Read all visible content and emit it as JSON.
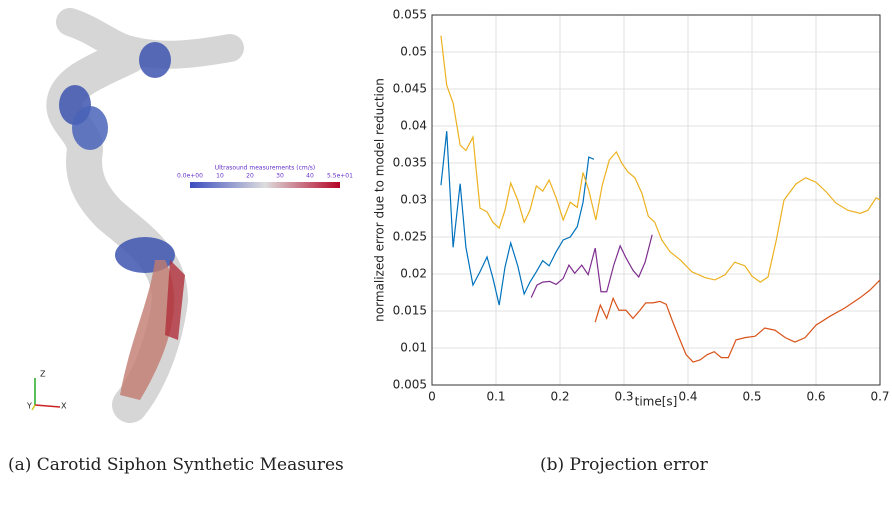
{
  "left_figure": {
    "colorbar_title": "Ultrasound measurements (cm/s)",
    "colorbar_ticks": [
      "0.0e+00",
      "10",
      "20",
      "30",
      "40",
      "5.5e+01"
    ],
    "axis_letters": [
      "Z",
      "Y",
      "X"
    ],
    "caption": "(a) Carotid Siphon Synthetic Measures"
  },
  "chart_data": {
    "type": "line",
    "caption": "(b) Projection error",
    "x_label": "time[s]",
    "y_label": "normalized error due to model reduction",
    "xlim": [
      0,
      0.7
    ],
    "ylim": [
      0.005,
      0.055
    ],
    "xticks": [
      0,
      0.1,
      0.2,
      0.3,
      0.4,
      0.5,
      0.6,
      0.7
    ],
    "yticks": [
      0.005,
      0.01,
      0.015,
      0.02,
      0.025,
      0.03,
      0.035,
      0.04,
      0.045,
      0.05,
      0.055
    ],
    "grid": true,
    "series": [
      {
        "color": "#0072bd",
        "x": [
          0.014,
          0.023,
          0.033,
          0.044,
          0.053,
          0.064,
          0.075,
          0.086,
          0.095,
          0.105,
          0.114,
          0.123,
          0.134,
          0.144,
          0.153,
          0.163,
          0.173,
          0.183,
          0.194,
          0.205,
          0.216,
          0.227,
          0.236,
          0.245,
          0.253
        ],
        "values": [
          0.032,
          0.0393,
          0.0236,
          0.0322,
          0.0236,
          0.0185,
          0.0203,
          0.0223,
          0.0195,
          0.0158,
          0.0209,
          0.0242,
          0.0211,
          0.0173,
          0.0189,
          0.0203,
          0.0218,
          0.0211,
          0.023,
          0.0246,
          0.025,
          0.0264,
          0.0297,
          0.0358,
          0.0355
        ]
      },
      {
        "color": "#edb120",
        "x": [
          0.014,
          0.023,
          0.033,
          0.044,
          0.053,
          0.064,
          0.075,
          0.086,
          0.095,
          0.105,
          0.114,
          0.123,
          0.134,
          0.144,
          0.153,
          0.163,
          0.173,
          0.183,
          0.194,
          0.205,
          0.216,
          0.227,
          0.236,
          0.245,
          0.256,
          0.266,
          0.277,
          0.288,
          0.297,
          0.306,
          0.317,
          0.328,
          0.338,
          0.348,
          0.359,
          0.372,
          0.388,
          0.406,
          0.427,
          0.442,
          0.458,
          0.473,
          0.489,
          0.5,
          0.513,
          0.525,
          0.538,
          0.55,
          0.569,
          0.584,
          0.6,
          0.616,
          0.631,
          0.65,
          0.669,
          0.681,
          0.694,
          0.7
        ],
        "values": [
          0.0522,
          0.0455,
          0.0431,
          0.0374,
          0.0367,
          0.0385,
          0.0289,
          0.0284,
          0.027,
          0.0262,
          0.0286,
          0.0323,
          0.03,
          0.027,
          0.0286,
          0.0319,
          0.0312,
          0.0327,
          0.0303,
          0.0273,
          0.0297,
          0.029,
          0.0337,
          0.0313,
          0.0273,
          0.032,
          0.0354,
          0.0365,
          0.0349,
          0.0338,
          0.033,
          0.0309,
          0.0278,
          0.027,
          0.0246,
          0.023,
          0.0219,
          0.0203,
          0.0195,
          0.0192,
          0.0199,
          0.0216,
          0.0211,
          0.0197,
          0.0189,
          0.0196,
          0.0246,
          0.03,
          0.0322,
          0.033,
          0.0324,
          0.0311,
          0.0296,
          0.0286,
          0.0282,
          0.0286,
          0.0303,
          0.03
        ]
      },
      {
        "color": "#7e2f8e",
        "x": [
          0.155,
          0.164,
          0.173,
          0.184,
          0.194,
          0.205,
          0.214,
          0.223,
          0.234,
          0.244,
          0.255,
          0.264,
          0.273,
          0.284,
          0.294,
          0.303,
          0.314,
          0.323,
          0.333,
          0.344
        ],
        "values": [
          0.0168,
          0.0185,
          0.0189,
          0.019,
          0.0186,
          0.0194,
          0.0212,
          0.0201,
          0.0212,
          0.0199,
          0.0235,
          0.0176,
          0.0176,
          0.0212,
          0.0238,
          0.0222,
          0.0205,
          0.0196,
          0.0216,
          0.0253
        ]
      },
      {
        "color": "#d95319",
        "x": [
          0.255,
          0.263,
          0.273,
          0.283,
          0.292,
          0.303,
          0.314,
          0.325,
          0.334,
          0.345,
          0.356,
          0.366,
          0.375,
          0.386,
          0.397,
          0.408,
          0.419,
          0.43,
          0.441,
          0.452,
          0.463,
          0.475,
          0.489,
          0.505,
          0.52,
          0.536,
          0.552,
          0.567,
          0.583,
          0.6,
          0.622,
          0.645,
          0.669,
          0.684,
          0.7
        ],
        "values": [
          0.0135,
          0.0158,
          0.014,
          0.0167,
          0.0151,
          0.0151,
          0.014,
          0.0151,
          0.0161,
          0.0161,
          0.0163,
          0.0159,
          0.0138,
          0.0114,
          0.0091,
          0.0081,
          0.0084,
          0.0091,
          0.0095,
          0.0087,
          0.0087,
          0.0111,
          0.0114,
          0.0116,
          0.0127,
          0.0124,
          0.0114,
          0.0108,
          0.0114,
          0.0131,
          0.0143,
          0.0154,
          0.0168,
          0.0178,
          0.0192
        ]
      }
    ]
  }
}
